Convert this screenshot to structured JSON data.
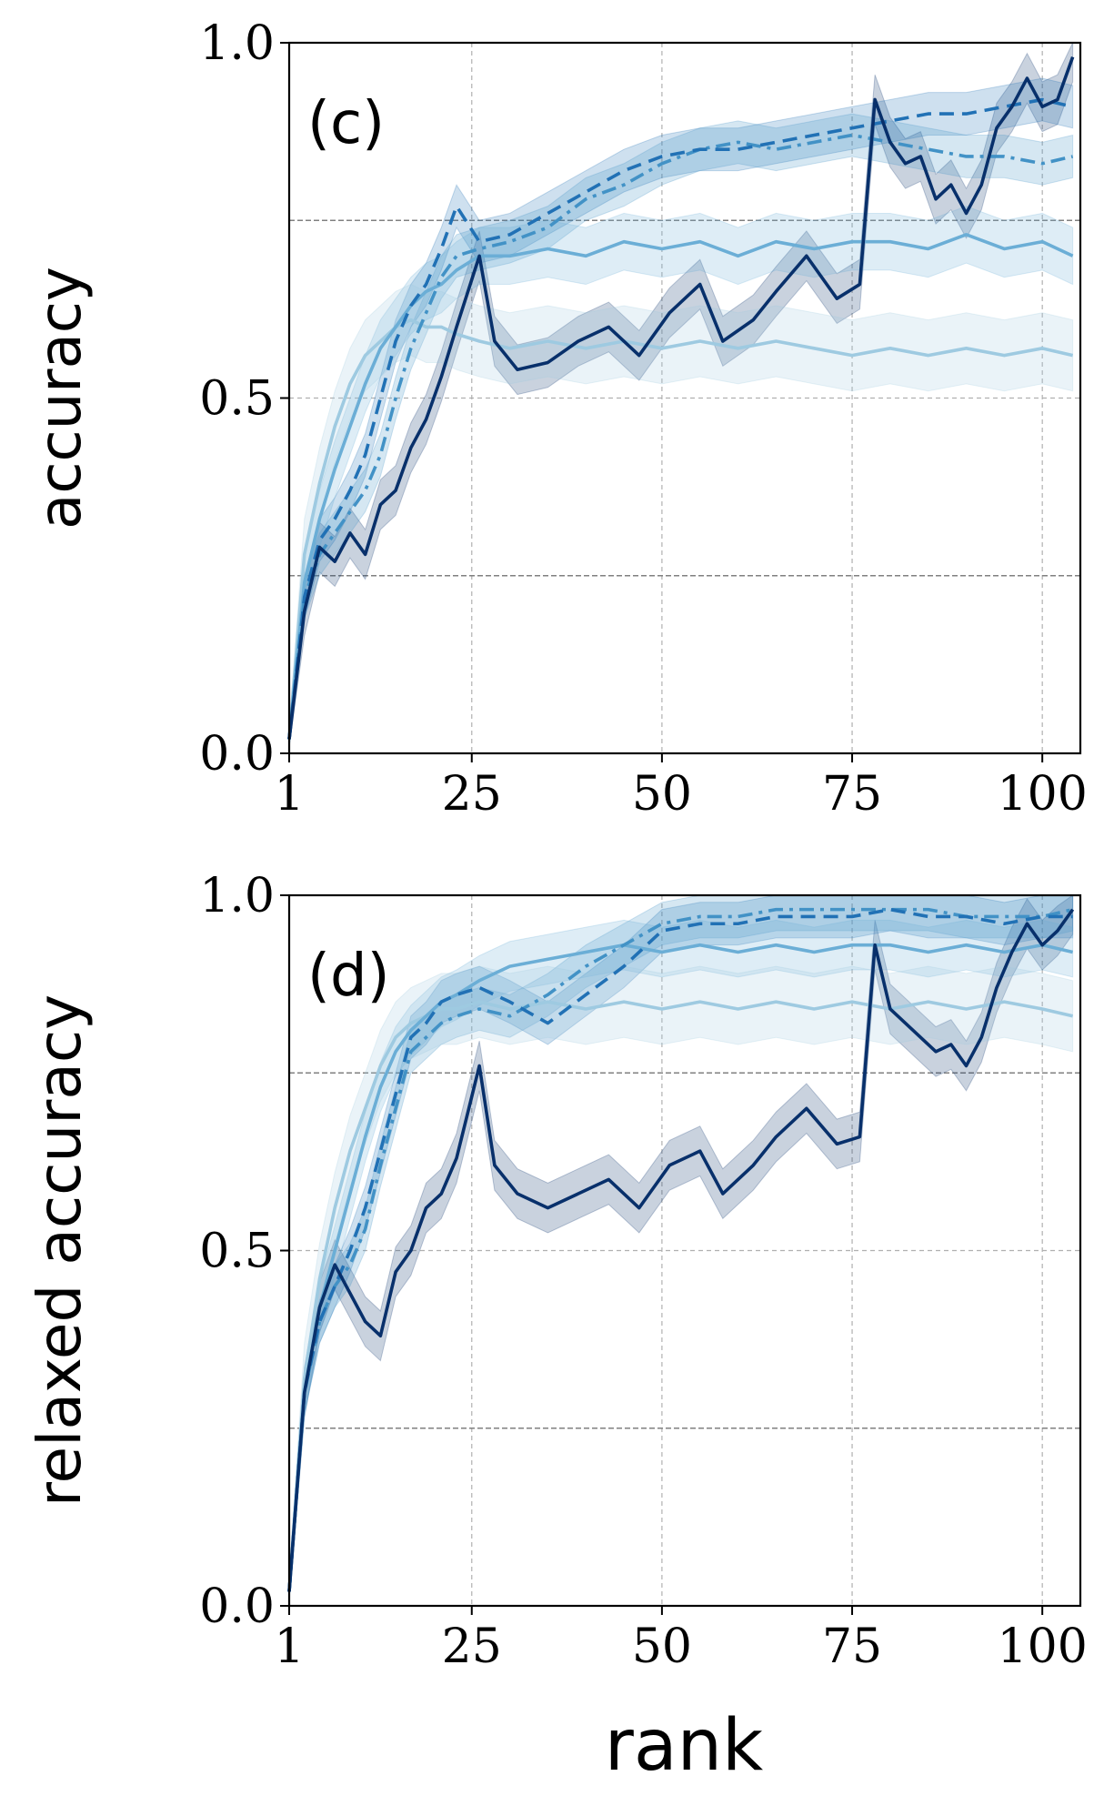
{
  "figure": {
    "shared_xlabel": "rank"
  },
  "chart_data": [
    {
      "type": "line",
      "panel_label": "(c)",
      "ylabel": "accuracy",
      "xlabel": "",
      "xlim": [
        1,
        105
      ],
      "ylim": [
        0,
        1
      ],
      "xticks": [
        1,
        25,
        50,
        75,
        100
      ],
      "xtick_labels": [
        "1",
        "25",
        "50",
        "75",
        "100"
      ],
      "yticks": [
        0,
        0.5,
        1
      ],
      "ytick_labels": [
        "0.0",
        "0.5",
        "1.0"
      ],
      "hlines": [
        0.25,
        0.75
      ],
      "grid": true,
      "legend": "none",
      "series": [
        {
          "color": "#08306b",
          "dash": "solid",
          "band": 0.035,
          "x": [
            1,
            3,
            5,
            7,
            9,
            11,
            13,
            15,
            17,
            19,
            21,
            23,
            26,
            28,
            31,
            35,
            39,
            43,
            47,
            51,
            55,
            58,
            62,
            65,
            69,
            73,
            76,
            78,
            80,
            82,
            84,
            86,
            88,
            90,
            92,
            94,
            96,
            98,
            100,
            102,
            104
          ],
          "y": [
            0.02,
            0.2,
            0.29,
            0.27,
            0.31,
            0.28,
            0.35,
            0.37,
            0.43,
            0.47,
            0.53,
            0.6,
            0.7,
            0.58,
            0.54,
            0.55,
            0.58,
            0.6,
            0.56,
            0.62,
            0.66,
            0.58,
            0.61,
            0.65,
            0.7,
            0.64,
            0.66,
            0.92,
            0.86,
            0.83,
            0.84,
            0.78,
            0.8,
            0.76,
            0.8,
            0.88,
            0.91,
            0.95,
            0.91,
            0.92,
            0.98
          ]
        },
        {
          "color": "#2171b5",
          "dash": "dashed",
          "band": 0.03,
          "x": [
            1,
            3,
            5,
            7,
            9,
            11,
            13,
            15,
            17,
            19,
            21,
            23,
            26,
            30,
            35,
            40,
            45,
            50,
            55,
            60,
            65,
            70,
            75,
            80,
            85,
            90,
            95,
            100,
            104
          ],
          "y": [
            0.02,
            0.22,
            0.3,
            0.33,
            0.37,
            0.42,
            0.5,
            0.58,
            0.63,
            0.66,
            0.71,
            0.77,
            0.72,
            0.73,
            0.76,
            0.79,
            0.82,
            0.84,
            0.85,
            0.85,
            0.86,
            0.87,
            0.88,
            0.89,
            0.9,
            0.9,
            0.91,
            0.92,
            0.91
          ]
        },
        {
          "color": "#4292c6",
          "dash": "dashdot",
          "band": 0.03,
          "x": [
            1,
            3,
            5,
            7,
            9,
            11,
            13,
            15,
            17,
            19,
            21,
            23,
            26,
            30,
            35,
            40,
            45,
            50,
            55,
            60,
            65,
            70,
            75,
            80,
            85,
            90,
            95,
            100,
            104
          ],
          "y": [
            0.02,
            0.22,
            0.28,
            0.31,
            0.34,
            0.37,
            0.42,
            0.5,
            0.57,
            0.62,
            0.67,
            0.7,
            0.71,
            0.72,
            0.74,
            0.78,
            0.8,
            0.83,
            0.85,
            0.86,
            0.85,
            0.86,
            0.87,
            0.86,
            0.85,
            0.84,
            0.84,
            0.83,
            0.84
          ]
        },
        {
          "color": "#6baed6",
          "dash": "solid",
          "band": 0.04,
          "x": [
            1,
            3,
            5,
            7,
            9,
            11,
            13,
            15,
            17,
            19,
            21,
            23,
            26,
            30,
            35,
            40,
            45,
            50,
            55,
            60,
            65,
            70,
            75,
            80,
            85,
            90,
            95,
            100,
            104
          ],
          "y": [
            0.02,
            0.24,
            0.33,
            0.4,
            0.46,
            0.52,
            0.57,
            0.6,
            0.63,
            0.65,
            0.66,
            0.68,
            0.7,
            0.7,
            0.71,
            0.7,
            0.72,
            0.71,
            0.72,
            0.7,
            0.72,
            0.71,
            0.72,
            0.72,
            0.71,
            0.73,
            0.71,
            0.72,
            0.7
          ]
        },
        {
          "color": "#9ecae1",
          "dash": "solid",
          "band": 0.05,
          "x": [
            1,
            3,
            5,
            7,
            9,
            11,
            13,
            15,
            17,
            19,
            21,
            23,
            26,
            30,
            35,
            40,
            45,
            50,
            55,
            60,
            65,
            70,
            75,
            80,
            85,
            90,
            95,
            100,
            104
          ],
          "y": [
            0.02,
            0.28,
            0.38,
            0.46,
            0.52,
            0.56,
            0.58,
            0.6,
            0.61,
            0.6,
            0.6,
            0.59,
            0.58,
            0.57,
            0.58,
            0.57,
            0.58,
            0.57,
            0.58,
            0.57,
            0.58,
            0.57,
            0.56,
            0.57,
            0.56,
            0.57,
            0.56,
            0.57,
            0.56
          ]
        }
      ]
    },
    {
      "type": "line",
      "panel_label": "(d)",
      "ylabel": "relaxed accuracy",
      "xlabel": "",
      "xlim": [
        1,
        105
      ],
      "ylim": [
        0,
        1
      ],
      "xticks": [
        1,
        25,
        50,
        75,
        100
      ],
      "xtick_labels": [
        "1",
        "25",
        "50",
        "75",
        "100"
      ],
      "yticks": [
        0,
        0.5,
        1
      ],
      "ytick_labels": [
        "0.0",
        "0.5",
        "1.0"
      ],
      "hlines": [
        0.25,
        0.75
      ],
      "grid": true,
      "legend": "none",
      "series": [
        {
          "color": "#08306b",
          "dash": "solid",
          "band": 0.035,
          "x": [
            1,
            3,
            5,
            7,
            9,
            11,
            13,
            15,
            17,
            19,
            21,
            23,
            26,
            28,
            31,
            35,
            39,
            43,
            47,
            51,
            55,
            58,
            62,
            65,
            69,
            73,
            76,
            78,
            80,
            82,
            84,
            86,
            88,
            90,
            92,
            94,
            96,
            98,
            100,
            102,
            104
          ],
          "y": [
            0.02,
            0.3,
            0.42,
            0.48,
            0.44,
            0.4,
            0.38,
            0.47,
            0.5,
            0.56,
            0.58,
            0.63,
            0.76,
            0.62,
            0.58,
            0.56,
            0.58,
            0.6,
            0.56,
            0.62,
            0.64,
            0.58,
            0.62,
            0.66,
            0.7,
            0.65,
            0.66,
            0.93,
            0.84,
            0.82,
            0.8,
            0.78,
            0.79,
            0.76,
            0.8,
            0.87,
            0.92,
            0.96,
            0.93,
            0.95,
            0.98
          ]
        },
        {
          "color": "#2171b5",
          "dash": "dashed",
          "band": 0.03,
          "x": [
            1,
            3,
            5,
            7,
            9,
            11,
            13,
            15,
            17,
            19,
            21,
            23,
            26,
            30,
            35,
            40,
            45,
            50,
            55,
            60,
            65,
            70,
            75,
            80,
            85,
            90,
            95,
            100,
            104
          ],
          "y": [
            0.02,
            0.3,
            0.4,
            0.45,
            0.5,
            0.56,
            0.64,
            0.72,
            0.8,
            0.82,
            0.85,
            0.86,
            0.87,
            0.85,
            0.82,
            0.86,
            0.9,
            0.95,
            0.96,
            0.96,
            0.97,
            0.97,
            0.97,
            0.98,
            0.97,
            0.97,
            0.96,
            0.97,
            0.97
          ]
        },
        {
          "color": "#4292c6",
          "dash": "dashdot",
          "band": 0.03,
          "x": [
            1,
            3,
            5,
            7,
            9,
            11,
            13,
            15,
            17,
            19,
            21,
            23,
            26,
            30,
            35,
            40,
            45,
            50,
            55,
            60,
            65,
            70,
            75,
            80,
            85,
            90,
            95,
            100,
            104
          ],
          "y": [
            0.02,
            0.3,
            0.4,
            0.45,
            0.48,
            0.53,
            0.62,
            0.7,
            0.78,
            0.8,
            0.82,
            0.83,
            0.84,
            0.83,
            0.86,
            0.9,
            0.93,
            0.96,
            0.97,
            0.97,
            0.98,
            0.98,
            0.98,
            0.98,
            0.98,
            0.97,
            0.97,
            0.97,
            0.98
          ]
        },
        {
          "color": "#6baed6",
          "dash": "solid",
          "band": 0.035,
          "x": [
            1,
            3,
            5,
            7,
            9,
            11,
            13,
            15,
            17,
            19,
            21,
            23,
            26,
            30,
            35,
            40,
            45,
            50,
            55,
            60,
            65,
            70,
            75,
            80,
            85,
            90,
            95,
            100,
            104
          ],
          "y": [
            0.02,
            0.3,
            0.42,
            0.5,
            0.58,
            0.66,
            0.73,
            0.78,
            0.81,
            0.83,
            0.85,
            0.86,
            0.88,
            0.9,
            0.91,
            0.92,
            0.93,
            0.92,
            0.93,
            0.92,
            0.93,
            0.92,
            0.93,
            0.93,
            0.92,
            0.93,
            0.92,
            0.93,
            0.92
          ]
        },
        {
          "color": "#9ecae1",
          "dash": "solid",
          "band": 0.05,
          "x": [
            1,
            3,
            5,
            7,
            9,
            11,
            13,
            15,
            17,
            19,
            21,
            23,
            26,
            30,
            35,
            40,
            45,
            50,
            55,
            60,
            65,
            70,
            75,
            80,
            85,
            90,
            95,
            100,
            104
          ],
          "y": [
            0.02,
            0.32,
            0.46,
            0.56,
            0.64,
            0.7,
            0.76,
            0.8,
            0.82,
            0.83,
            0.84,
            0.84,
            0.85,
            0.84,
            0.85,
            0.84,
            0.85,
            0.84,
            0.85,
            0.84,
            0.85,
            0.84,
            0.85,
            0.84,
            0.85,
            0.84,
            0.85,
            0.84,
            0.83
          ]
        }
      ]
    }
  ]
}
